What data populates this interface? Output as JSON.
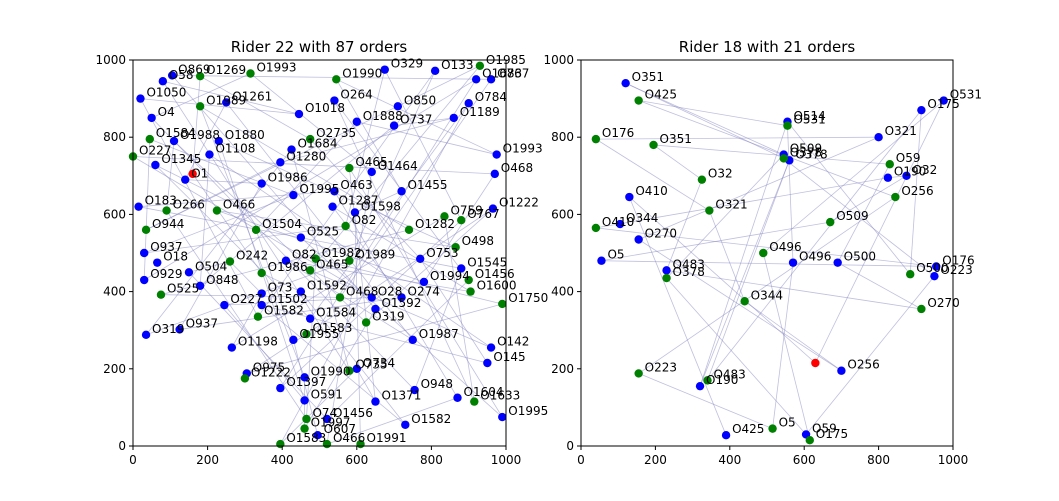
{
  "chart_data": [
    {
      "type": "scatter",
      "title": "Rider 22 with 87 orders",
      "xlim": [
        0,
        1000
      ],
      "ylim": [
        0,
        1000
      ],
      "xticks": [
        0,
        200,
        400,
        600,
        800,
        1000
      ],
      "yticks": [
        0,
        200,
        400,
        600,
        800,
        1000
      ],
      "colors": {
        "pickup": "#0000ff",
        "delivery": "#008000",
        "rider": "#ff0000",
        "route": "#8080c0"
      },
      "rider": {
        "x": 160,
        "y": 705
      },
      "points": [
        {
          "label": "O869",
          "x": 105,
          "y": 960,
          "kind": "pickup"
        },
        {
          "label": "O58",
          "x": 80,
          "y": 945,
          "kind": "pickup"
        },
        {
          "label": "O1269",
          "x": 180,
          "y": 958,
          "kind": "delivery"
        },
        {
          "label": "O1993",
          "x": 315,
          "y": 965,
          "kind": "delivery"
        },
        {
          "label": "O1990",
          "x": 545,
          "y": 950,
          "kind": "delivery"
        },
        {
          "label": "O329",
          "x": 675,
          "y": 975,
          "kind": "pickup"
        },
        {
          "label": "O1985",
          "x": 930,
          "y": 985,
          "kind": "delivery"
        },
        {
          "label": "O133",
          "x": 810,
          "y": 972,
          "kind": "pickup"
        },
        {
          "label": "O1683",
          "x": 920,
          "y": 950,
          "kind": "pickup"
        },
        {
          "label": "O767",
          "x": 960,
          "y": 950,
          "kind": "pickup"
        },
        {
          "label": "O1050",
          "x": 20,
          "y": 900,
          "kind": "pickup"
        },
        {
          "label": "O1261",
          "x": 250,
          "y": 890,
          "kind": "pickup"
        },
        {
          "label": "O1989",
          "x": 180,
          "y": 880,
          "kind": "delivery"
        },
        {
          "label": "O264",
          "x": 540,
          "y": 895,
          "kind": "pickup"
        },
        {
          "label": "O784",
          "x": 900,
          "y": 888,
          "kind": "pickup"
        },
        {
          "label": "O4",
          "x": 50,
          "y": 850,
          "kind": "pickup"
        },
        {
          "label": "O1018",
          "x": 445,
          "y": 860,
          "kind": "pickup"
        },
        {
          "label": "O850",
          "x": 710,
          "y": 880,
          "kind": "pickup"
        },
        {
          "label": "O1189",
          "x": 860,
          "y": 850,
          "kind": "pickup"
        },
        {
          "label": "O1888",
          "x": 600,
          "y": 840,
          "kind": "pickup"
        },
        {
          "label": "O1584",
          "x": 45,
          "y": 795,
          "kind": "delivery"
        },
        {
          "label": "O1988",
          "x": 110,
          "y": 790,
          "kind": "pickup"
        },
        {
          "label": "O1880",
          "x": 230,
          "y": 790,
          "kind": "pickup"
        },
        {
          "label": "O2735",
          "x": 475,
          "y": 795,
          "kind": "delivery"
        },
        {
          "label": "O737",
          "x": 700,
          "y": 830,
          "kind": "pickup"
        },
        {
          "label": "O227",
          "x": 0,
          "y": 750,
          "kind": "delivery"
        },
        {
          "label": "O1345",
          "x": 60,
          "y": 728,
          "kind": "pickup"
        },
        {
          "label": "O1108",
          "x": 205,
          "y": 755,
          "kind": "pickup"
        },
        {
          "label": "O1684",
          "x": 425,
          "y": 768,
          "kind": "pickup"
        },
        {
          "label": "O465",
          "x": 580,
          "y": 720,
          "kind": "delivery"
        },
        {
          "label": "O1464",
          "x": 640,
          "y": 710,
          "kind": "pickup"
        },
        {
          "label": "O1993",
          "x": 975,
          "y": 755,
          "kind": "pickup"
        },
        {
          "label": "O1",
          "x": 140,
          "y": 690,
          "kind": "pickup"
        },
        {
          "label": "O1280",
          "x": 395,
          "y": 735,
          "kind": "pickup"
        },
        {
          "label": "O468",
          "x": 970,
          "y": 705,
          "kind": "pickup"
        },
        {
          "label": "O1986",
          "x": 345,
          "y": 680,
          "kind": "pickup"
        },
        {
          "label": "O463",
          "x": 540,
          "y": 660,
          "kind": "pickup"
        },
        {
          "label": "O1455",
          "x": 720,
          "y": 660,
          "kind": "pickup"
        },
        {
          "label": "O1995",
          "x": 430,
          "y": 650,
          "kind": "pickup"
        },
        {
          "label": "O183",
          "x": 15,
          "y": 620,
          "kind": "pickup"
        },
        {
          "label": "O466",
          "x": 225,
          "y": 610,
          "kind": "delivery"
        },
        {
          "label": "O1287",
          "x": 535,
          "y": 620,
          "kind": "pickup"
        },
        {
          "label": "O1222",
          "x": 965,
          "y": 615,
          "kind": "pickup"
        },
        {
          "label": "O759",
          "x": 835,
          "y": 595,
          "kind": "delivery"
        },
        {
          "label": "O767",
          "x": 880,
          "y": 585,
          "kind": "delivery"
        },
        {
          "label": "O266",
          "x": 90,
          "y": 610,
          "kind": "delivery"
        },
        {
          "label": "O1598",
          "x": 595,
          "y": 605,
          "kind": "pickup"
        },
        {
          "label": "O82",
          "x": 570,
          "y": 570,
          "kind": "delivery"
        },
        {
          "label": "O1282",
          "x": 740,
          "y": 560,
          "kind": "delivery"
        },
        {
          "label": "O1504",
          "x": 330,
          "y": 560,
          "kind": "delivery"
        },
        {
          "label": "O525",
          "x": 450,
          "y": 540,
          "kind": "pickup"
        },
        {
          "label": "O944",
          "x": 35,
          "y": 560,
          "kind": "delivery"
        },
        {
          "label": "O498",
          "x": 865,
          "y": 515,
          "kind": "delivery"
        },
        {
          "label": "O937",
          "x": 30,
          "y": 500,
          "kind": "pickup"
        },
        {
          "label": "O18",
          "x": 65,
          "y": 475,
          "kind": "pickup"
        },
        {
          "label": "O242",
          "x": 260,
          "y": 478,
          "kind": "delivery"
        },
        {
          "label": "O82",
          "x": 410,
          "y": 480,
          "kind": "pickup"
        },
        {
          "label": "O1982",
          "x": 490,
          "y": 485,
          "kind": "delivery"
        },
        {
          "label": "O1989",
          "x": 580,
          "y": 480,
          "kind": "delivery"
        },
        {
          "label": "O753",
          "x": 770,
          "y": 485,
          "kind": "pickup"
        },
        {
          "label": "O1545",
          "x": 880,
          "y": 460,
          "kind": "pickup"
        },
        {
          "label": "O504",
          "x": 150,
          "y": 450,
          "kind": "pickup"
        },
        {
          "label": "O1986",
          "x": 345,
          "y": 448,
          "kind": "delivery"
        },
        {
          "label": "O465",
          "x": 475,
          "y": 455,
          "kind": "delivery"
        },
        {
          "label": "O1456",
          "x": 900,
          "y": 430,
          "kind": "delivery"
        },
        {
          "label": "O929",
          "x": 30,
          "y": 430,
          "kind": "pickup"
        },
        {
          "label": "O848",
          "x": 180,
          "y": 415,
          "kind": "pickup"
        },
        {
          "label": "O1994",
          "x": 780,
          "y": 425,
          "kind": "pickup"
        },
        {
          "label": "O1600",
          "x": 905,
          "y": 400,
          "kind": "delivery"
        },
        {
          "label": "O525",
          "x": 75,
          "y": 392,
          "kind": "delivery"
        },
        {
          "label": "O73",
          "x": 345,
          "y": 395,
          "kind": "pickup"
        },
        {
          "label": "O1592",
          "x": 450,
          "y": 400,
          "kind": "pickup"
        },
        {
          "label": "O468",
          "x": 555,
          "y": 385,
          "kind": "delivery"
        },
        {
          "label": "O28",
          "x": 640,
          "y": 385,
          "kind": "pickup"
        },
        {
          "label": "O274",
          "x": 720,
          "y": 385,
          "kind": "pickup"
        },
        {
          "label": "O1750",
          "x": 990,
          "y": 368,
          "kind": "delivery"
        },
        {
          "label": "O227",
          "x": 245,
          "y": 365,
          "kind": "pickup"
        },
        {
          "label": "O1502",
          "x": 345,
          "y": 365,
          "kind": "pickup"
        },
        {
          "label": "O1592",
          "x": 650,
          "y": 355,
          "kind": "pickup"
        },
        {
          "label": "O1582",
          "x": 335,
          "y": 335,
          "kind": "delivery"
        },
        {
          "label": "O1584",
          "x": 475,
          "y": 330,
          "kind": "pickup"
        },
        {
          "label": "O319",
          "x": 625,
          "y": 320,
          "kind": "delivery"
        },
        {
          "label": "O319",
          "x": 35,
          "y": 288,
          "kind": "pickup"
        },
        {
          "label": "O937",
          "x": 125,
          "y": 302,
          "kind": "pickup"
        },
        {
          "label": "O1583",
          "x": 465,
          "y": 290,
          "kind": "delivery"
        },
        {
          "label": "O1955",
          "x": 430,
          "y": 275,
          "kind": "pickup"
        },
        {
          "label": "O1987",
          "x": 750,
          "y": 275,
          "kind": "pickup"
        },
        {
          "label": "O142",
          "x": 960,
          "y": 255,
          "kind": "pickup"
        },
        {
          "label": "O1198",
          "x": 265,
          "y": 255,
          "kind": "pickup"
        },
        {
          "label": "O145",
          "x": 950,
          "y": 215,
          "kind": "pickup"
        },
        {
          "label": "O975",
          "x": 305,
          "y": 188,
          "kind": "pickup"
        },
        {
          "label": "O1222",
          "x": 300,
          "y": 175,
          "kind": "delivery"
        },
        {
          "label": "O734",
          "x": 600,
          "y": 200,
          "kind": "pickup"
        },
        {
          "label": "O1990",
          "x": 460,
          "y": 178,
          "kind": "pickup"
        },
        {
          "label": "O735",
          "x": 580,
          "y": 195,
          "kind": "delivery"
        },
        {
          "label": "O1397",
          "x": 395,
          "y": 150,
          "kind": "pickup"
        },
        {
          "label": "O948",
          "x": 755,
          "y": 145,
          "kind": "pickup"
        },
        {
          "label": "O591",
          "x": 460,
          "y": 118,
          "kind": "pickup"
        },
        {
          "label": "O1371",
          "x": 650,
          "y": 115,
          "kind": "pickup"
        },
        {
          "label": "O1604",
          "x": 870,
          "y": 125,
          "kind": "pickup"
        },
        {
          "label": "O1633",
          "x": 915,
          "y": 115,
          "kind": "delivery"
        },
        {
          "label": "O1995",
          "x": 990,
          "y": 75,
          "kind": "pickup"
        },
        {
          "label": "O74",
          "x": 465,
          "y": 70,
          "kind": "delivery"
        },
        {
          "label": "O1456",
          "x": 520,
          "y": 70,
          "kind": "pickup"
        },
        {
          "label": "O1582",
          "x": 730,
          "y": 55,
          "kind": "pickup"
        },
        {
          "label": "O1997",
          "x": 460,
          "y": 45,
          "kind": "delivery"
        },
        {
          "label": "O607",
          "x": 495,
          "y": 28,
          "kind": "pickup"
        },
        {
          "label": "O1583",
          "x": 395,
          "y": 5,
          "kind": "delivery"
        },
        {
          "label": "O466",
          "x": 520,
          "y": 5,
          "kind": "delivery"
        },
        {
          "label": "O1991",
          "x": 610,
          "y": 5,
          "kind": "delivery"
        }
      ]
    },
    {
      "type": "scatter",
      "title": "Rider 18 with 21 orders",
      "xlim": [
        0,
        1000
      ],
      "ylim": [
        0,
        1000
      ],
      "xticks": [
        0,
        200,
        400,
        600,
        800,
        1000
      ],
      "yticks": [
        0,
        200,
        400,
        600,
        800,
        1000
      ],
      "colors": {
        "pickup": "#0000ff",
        "delivery": "#008000",
        "rider": "#ff0000",
        "route": "#8080c0"
      },
      "rider": {
        "x": 630,
        "y": 215
      },
      "points": [
        {
          "label": "O351",
          "x": 120,
          "y": 940,
          "kind": "pickup"
        },
        {
          "label": "O425",
          "x": 155,
          "y": 895,
          "kind": "delivery"
        },
        {
          "label": "O531",
          "x": 975,
          "y": 895,
          "kind": "pickup"
        },
        {
          "label": "O175",
          "x": 915,
          "y": 870,
          "kind": "pickup"
        },
        {
          "label": "O514",
          "x": 555,
          "y": 840,
          "kind": "pickup"
        },
        {
          "label": "O531",
          "x": 555,
          "y": 830,
          "kind": "delivery"
        },
        {
          "label": "O176",
          "x": 40,
          "y": 795,
          "kind": "delivery"
        },
        {
          "label": "O351",
          "x": 195,
          "y": 780,
          "kind": "delivery"
        },
        {
          "label": "O321",
          "x": 800,
          "y": 800,
          "kind": "pickup"
        },
        {
          "label": "O509",
          "x": 545,
          "y": 755,
          "kind": "pickup"
        },
        {
          "label": "O378",
          "x": 560,
          "y": 740,
          "kind": "pickup"
        },
        {
          "label": "O378",
          "x": 545,
          "y": 745,
          "kind": "delivery"
        },
        {
          "label": "O59",
          "x": 830,
          "y": 730,
          "kind": "delivery"
        },
        {
          "label": "O32",
          "x": 875,
          "y": 700,
          "kind": "pickup"
        },
        {
          "label": "O190",
          "x": 825,
          "y": 695,
          "kind": "pickup"
        },
        {
          "label": "O32",
          "x": 325,
          "y": 690,
          "kind": "delivery"
        },
        {
          "label": "O256",
          "x": 845,
          "y": 645,
          "kind": "delivery"
        },
        {
          "label": "O410",
          "x": 130,
          "y": 645,
          "kind": "pickup"
        },
        {
          "label": "O321",
          "x": 345,
          "y": 610,
          "kind": "delivery"
        },
        {
          "label": "O509",
          "x": 670,
          "y": 580,
          "kind": "delivery"
        },
        {
          "label": "O344",
          "x": 105,
          "y": 575,
          "kind": "pickup"
        },
        {
          "label": "O410",
          "x": 40,
          "y": 565,
          "kind": "delivery"
        },
        {
          "label": "O270",
          "x": 155,
          "y": 535,
          "kind": "pickup"
        },
        {
          "label": "O496",
          "x": 490,
          "y": 500,
          "kind": "delivery"
        },
        {
          "label": "O496",
          "x": 570,
          "y": 475,
          "kind": "pickup"
        },
        {
          "label": "O500",
          "x": 690,
          "y": 475,
          "kind": "pickup"
        },
        {
          "label": "O5",
          "x": 55,
          "y": 480,
          "kind": "pickup"
        },
        {
          "label": "O176",
          "x": 955,
          "y": 465,
          "kind": "pickup"
        },
        {
          "label": "O483",
          "x": 230,
          "y": 455,
          "kind": "pickup"
        },
        {
          "label": "O378",
          "x": 230,
          "y": 435,
          "kind": "delivery"
        },
        {
          "label": "O500",
          "x": 885,
          "y": 445,
          "kind": "delivery"
        },
        {
          "label": "O223",
          "x": 950,
          "y": 440,
          "kind": "pickup"
        },
        {
          "label": "O344",
          "x": 440,
          "y": 375,
          "kind": "delivery"
        },
        {
          "label": "O270",
          "x": 915,
          "y": 355,
          "kind": "delivery"
        },
        {
          "label": "O256",
          "x": 700,
          "y": 195,
          "kind": "pickup"
        },
        {
          "label": "O223",
          "x": 155,
          "y": 188,
          "kind": "delivery"
        },
        {
          "label": "O483",
          "x": 340,
          "y": 170,
          "kind": "delivery"
        },
        {
          "label": "O190",
          "x": 320,
          "y": 155,
          "kind": "pickup"
        },
        {
          "label": "O425",
          "x": 390,
          "y": 28,
          "kind": "pickup"
        },
        {
          "label": "O5",
          "x": 515,
          "y": 45,
          "kind": "delivery"
        },
        {
          "label": "O59",
          "x": 605,
          "y": 30,
          "kind": "pickup"
        },
        {
          "label": "O175",
          "x": 615,
          "y": 15,
          "kind": "delivery"
        }
      ]
    }
  ]
}
